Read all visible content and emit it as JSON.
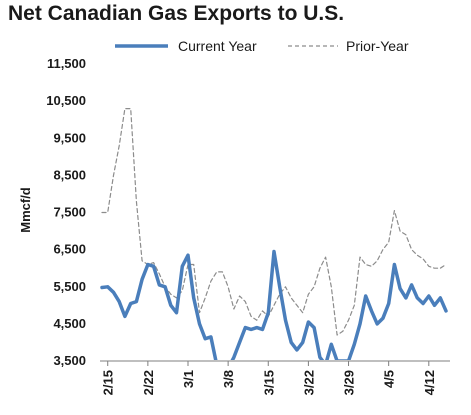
{
  "chart_data": {
    "type": "line",
    "title": "Net Canadian Gas Exports to U.S.",
    "ylabel": "Mmcf/d",
    "xlabel": "",
    "ylim": [
      3500,
      11500
    ],
    "yticks": [
      3500,
      4500,
      5500,
      6500,
      7500,
      8500,
      9500,
      10500,
      11500
    ],
    "ytick_labels": [
      "3,500",
      "4,500",
      "5,500",
      "6,500",
      "7,500",
      "8,500",
      "9,500",
      "10,500",
      "11,500"
    ],
    "xlim": [
      0,
      60
    ],
    "xticks": [
      {
        "x": 1,
        "label": "2/15"
      },
      {
        "x": 8,
        "label": "2/22"
      },
      {
        "x": 15,
        "label": "3/1"
      },
      {
        "x": 22,
        "label": "3/8"
      },
      {
        "x": 29,
        "label": "3/15"
      },
      {
        "x": 36,
        "label": "3/22"
      },
      {
        "x": 43,
        "label": "3/29"
      },
      {
        "x": 50,
        "label": "4/5"
      },
      {
        "x": 57,
        "label": "4/12"
      }
    ],
    "grid": false,
    "legend_position": "top",
    "series": [
      {
        "name": "Current Year",
        "color": "#4a7ebb",
        "style": "solid",
        "points": [
          [
            0,
            5480
          ],
          [
            1,
            5500
          ],
          [
            2,
            5350
          ],
          [
            3,
            5100
          ],
          [
            4,
            4700
          ],
          [
            5,
            5050
          ],
          [
            6,
            5100
          ],
          [
            7,
            5700
          ],
          [
            8,
            6100
          ],
          [
            9,
            6050
          ],
          [
            10,
            5550
          ],
          [
            11,
            5500
          ],
          [
            12,
            5000
          ],
          [
            13,
            4800
          ],
          [
            14,
            6050
          ],
          [
            15,
            6350
          ],
          [
            16,
            5200
          ],
          [
            17,
            4500
          ],
          [
            18,
            4100
          ],
          [
            19,
            4150
          ],
          [
            20,
            3400
          ],
          [
            21,
            3100
          ],
          [
            22,
            3300
          ],
          [
            23,
            3600
          ],
          [
            24,
            4000
          ],
          [
            25,
            4400
          ],
          [
            26,
            4350
          ],
          [
            27,
            4400
          ],
          [
            28,
            4350
          ],
          [
            29,
            4800
          ],
          [
            30,
            6450
          ],
          [
            31,
            5500
          ],
          [
            32,
            4600
          ],
          [
            33,
            4000
          ],
          [
            34,
            3800
          ],
          [
            35,
            4000
          ],
          [
            36,
            4550
          ],
          [
            37,
            4400
          ],
          [
            38,
            3600
          ],
          [
            39,
            3400
          ],
          [
            40,
            3950
          ],
          [
            41,
            3500
          ],
          [
            42,
            3500
          ],
          [
            43,
            3500
          ],
          [
            44,
            3950
          ],
          [
            45,
            4500
          ],
          [
            46,
            5250
          ],
          [
            47,
            4850
          ],
          [
            48,
            4500
          ],
          [
            49,
            4650
          ],
          [
            50,
            5050
          ],
          [
            51,
            6100
          ],
          [
            52,
            5450
          ],
          [
            53,
            5200
          ],
          [
            54,
            5550
          ],
          [
            55,
            5200
          ],
          [
            56,
            5050
          ],
          [
            57,
            5250
          ],
          [
            58,
            5000
          ],
          [
            59,
            5200
          ],
          [
            60,
            4850
          ]
        ]
      },
      {
        "name": "Prior-Year",
        "color": "#8c8c8c",
        "style": "dashed",
        "points": [
          [
            0,
            7500
          ],
          [
            1,
            7500
          ],
          [
            2,
            8500
          ],
          [
            3,
            9300
          ],
          [
            4,
            10300
          ],
          [
            5,
            10300
          ],
          [
            6,
            7800
          ],
          [
            7,
            6200
          ],
          [
            8,
            6100
          ],
          [
            9,
            6150
          ],
          [
            10,
            5850
          ],
          [
            11,
            5500
          ],
          [
            12,
            5300
          ],
          [
            13,
            5200
          ],
          [
            14,
            5400
          ],
          [
            15,
            6100
          ],
          [
            16,
            6100
          ],
          [
            17,
            4800
          ],
          [
            18,
            5200
          ],
          [
            19,
            5650
          ],
          [
            20,
            5900
          ],
          [
            21,
            5900
          ],
          [
            22,
            5500
          ],
          [
            23,
            4900
          ],
          [
            24,
            5250
          ],
          [
            25,
            5100
          ],
          [
            26,
            4700
          ],
          [
            27,
            4600
          ],
          [
            28,
            4850
          ],
          [
            29,
            4700
          ],
          [
            30,
            5000
          ],
          [
            31,
            5300
          ],
          [
            32,
            5500
          ],
          [
            33,
            5200
          ],
          [
            34,
            5000
          ],
          [
            35,
            4800
          ],
          [
            36,
            5300
          ],
          [
            37,
            5500
          ],
          [
            38,
            6000
          ],
          [
            39,
            6300
          ],
          [
            40,
            5500
          ],
          [
            41,
            4200
          ],
          [
            42,
            4300
          ],
          [
            43,
            4600
          ],
          [
            44,
            5000
          ],
          [
            45,
            6300
          ],
          [
            46,
            6100
          ],
          [
            47,
            6050
          ],
          [
            48,
            6200
          ],
          [
            49,
            6500
          ],
          [
            50,
            6700
          ],
          [
            51,
            7550
          ],
          [
            52,
            7000
          ],
          [
            53,
            6900
          ],
          [
            54,
            6500
          ],
          [
            55,
            6350
          ],
          [
            56,
            6250
          ],
          [
            57,
            6050
          ],
          [
            58,
            6000
          ],
          [
            59,
            6000
          ],
          [
            60,
            6100
          ]
        ]
      }
    ]
  }
}
